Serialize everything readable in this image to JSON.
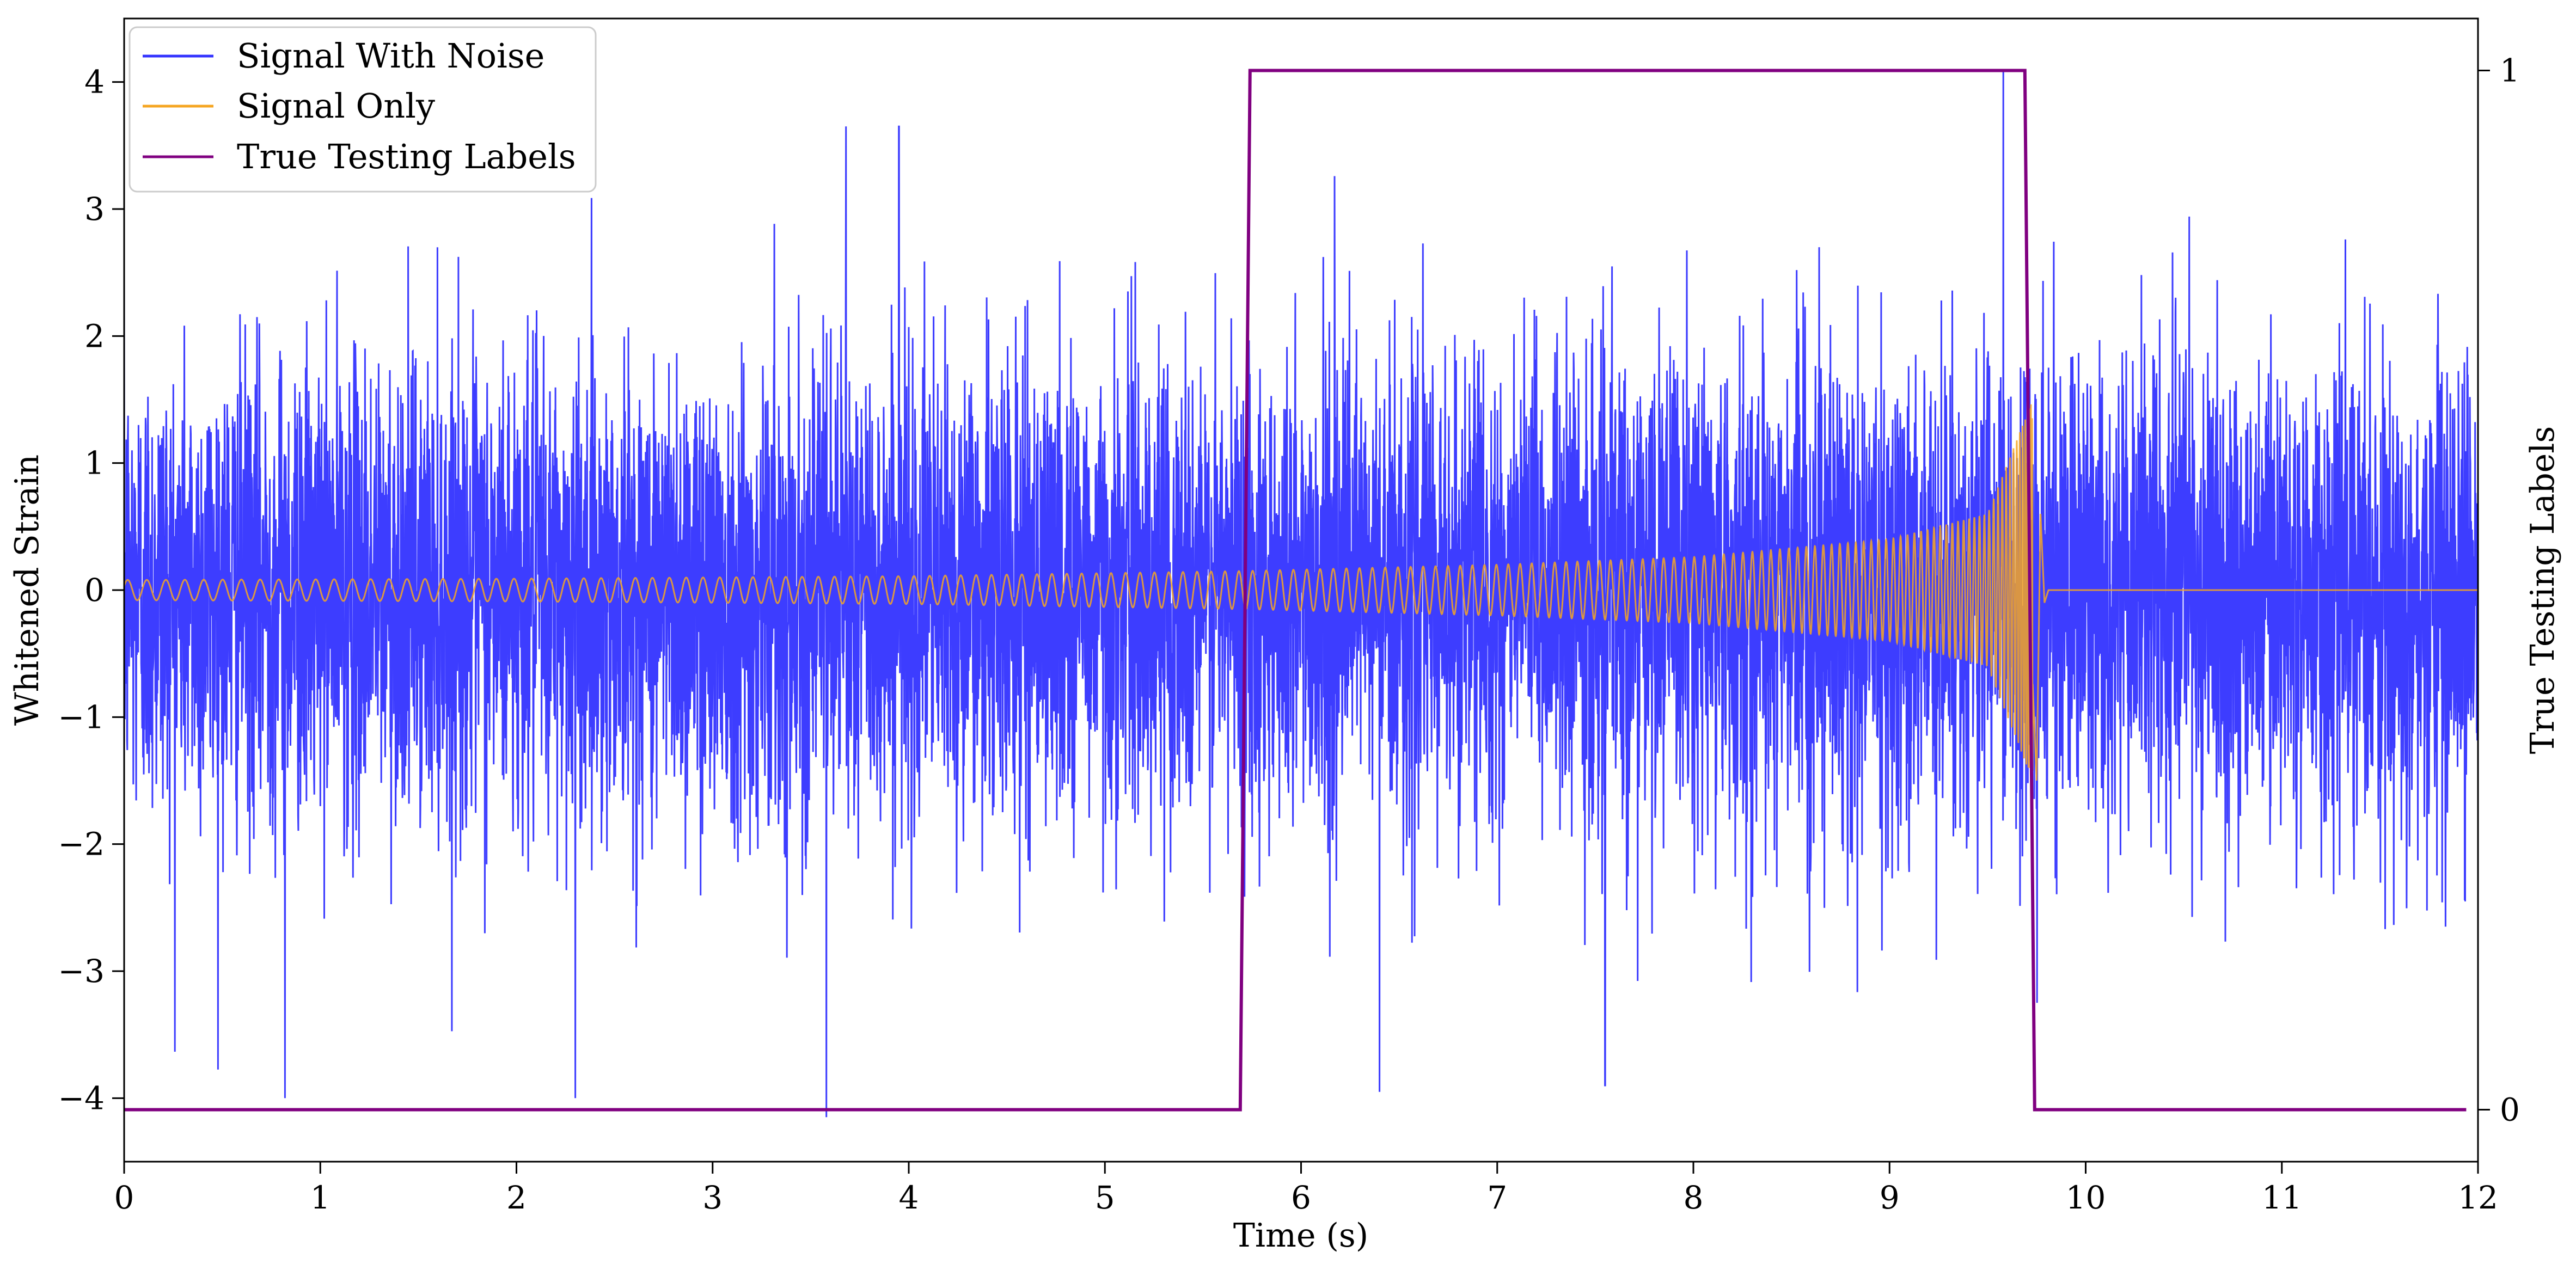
{
  "chart_data": {
    "type": "line",
    "xlabel": "Time (s)",
    "ylabel": "Whitened Strain",
    "y2label": "True Testing Labels",
    "xlim": [
      0,
      12
    ],
    "ylim": [
      -4.5,
      4.5
    ],
    "y2lim": [
      -0.05,
      1.05
    ],
    "x_ticks": [
      0,
      1,
      2,
      3,
      4,
      5,
      6,
      7,
      8,
      9,
      10,
      11,
      12
    ],
    "x_tick_labels": [
      "0",
      "1",
      "2",
      "3",
      "4",
      "5",
      "6",
      "7",
      "8",
      "9",
      "10",
      "11",
      "12"
    ],
    "y_ticks": [
      -4,
      -3,
      -2,
      -1,
      0,
      1,
      2,
      3,
      4
    ],
    "y_tick_labels": [
      "−4",
      "−3",
      "−2",
      "−1",
      "0",
      "1",
      "2",
      "3",
      "4"
    ],
    "y2_ticks": [
      0,
      1
    ],
    "y2_tick_labels": [
      "0",
      "1"
    ],
    "grid": false,
    "legend_position": "upper-left",
    "series": [
      {
        "name": "Signal With Noise",
        "color": "#3333ff",
        "axis": "left",
        "kind": "noise",
        "x_range": [
          0,
          12
        ],
        "std": 0.9,
        "extreme_peaks": [
          {
            "x": 0.82,
            "y": -4.0
          },
          {
            "x": 2.3,
            "y": -4.0
          },
          {
            "x": 3.58,
            "y": -4.15
          },
          {
            "x": 3.68,
            "y": 3.65
          },
          {
            "x": 3.95,
            "y": 3.65
          },
          {
            "x": 9.58,
            "y": 4.1
          },
          {
            "x": 6.4,
            "y": -3.95
          },
          {
            "x": 7.55,
            "y": -3.9
          }
        ]
      },
      {
        "name": "Signal Only",
        "color": "#f5a623",
        "axis": "left",
        "kind": "chirp",
        "x_range": [
          0,
          12
        ],
        "merger_time": 9.73,
        "envelope_points": [
          {
            "x": 0,
            "y": 0.08
          },
          {
            "x": 2,
            "y": 0.09
          },
          {
            "x": 4,
            "y": 0.11
          },
          {
            "x": 5.7,
            "y": 0.15
          },
          {
            "x": 7,
            "y": 0.2
          },
          {
            "x": 8,
            "y": 0.26
          },
          {
            "x": 9,
            "y": 0.4
          },
          {
            "x": 9.5,
            "y": 0.6
          },
          {
            "x": 9.73,
            "y": 1.5
          }
        ],
        "post_merger_value": 0
      },
      {
        "name": "True Testing Labels",
        "color": "#800080",
        "axis": "right",
        "points": [
          {
            "x": 0,
            "y": 0
          },
          {
            "x": 5.69,
            "y": 0
          },
          {
            "x": 5.74,
            "y": 1
          },
          {
            "x": 9.69,
            "y": 1
          },
          {
            "x": 9.74,
            "y": 0
          },
          {
            "x": 11.94,
            "y": 0
          }
        ]
      }
    ]
  }
}
